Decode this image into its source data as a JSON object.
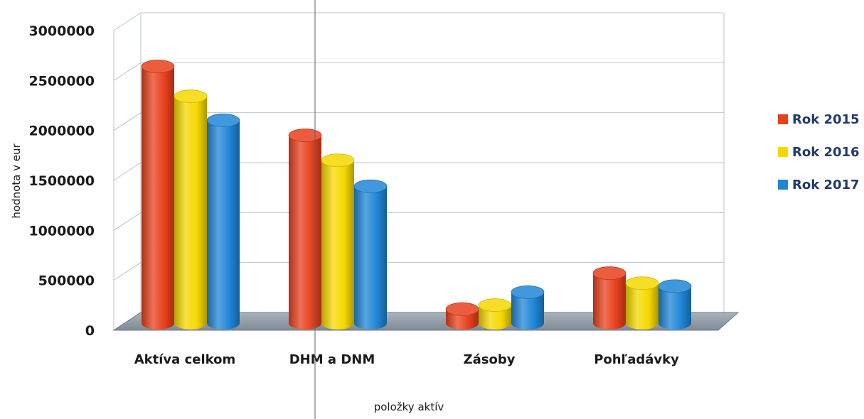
{
  "chart_data": {
    "type": "bar",
    "title": "",
    "xlabel": "položky aktív",
    "ylabel": "hodnota v eur",
    "categories": [
      "Aktíva celkom",
      "DHM a DNM",
      "Zásoby",
      "Pohľadávky"
    ],
    "series": [
      {
        "name": "Rok 2015",
        "values": [
          2570000,
          1880000,
          140000,
          500000
        ],
        "color": "#e8401c"
      },
      {
        "name": "Rok 2016",
        "values": [
          2270000,
          1630000,
          180000,
          400000
        ],
        "color": "#f5d800"
      },
      {
        "name": "Rok 2017",
        "values": [
          2030000,
          1370000,
          310000,
          370000
        ],
        "color": "#1f86d6"
      }
    ],
    "ylim": [
      0,
      3000000
    ],
    "yticks": [
      "0",
      "500000",
      "1000000",
      "1500000",
      "2000000",
      "2500000",
      "3000000"
    ],
    "grid": true,
    "legend_position": "right",
    "style": "3d-cylinder"
  }
}
